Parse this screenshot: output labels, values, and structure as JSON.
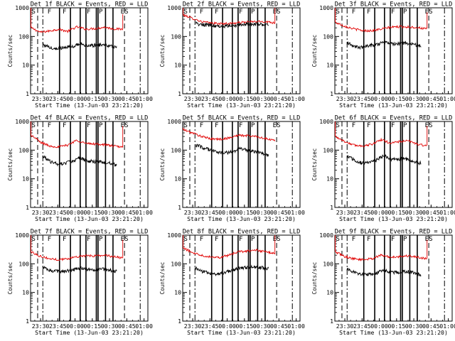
{
  "page": {
    "background": "#ffffff",
    "axis_color": "#000000"
  },
  "chart_data": [
    {
      "type": "line",
      "title": "Det 1f BLACK = Events, RED = LLD",
      "ylabel": "Counts/sec",
      "xlabel": "Start Time (13-Jun-03 23:21:20)",
      "yscale": "log",
      "ylim": [
        1,
        1000
      ],
      "yticks": [
        "1",
        "10",
        "100",
        "1000"
      ],
      "xlim": [
        "23:21:20",
        "01:03:20"
      ],
      "xticks": [
        "23:30",
        "23:45",
        "00:00",
        "00:15",
        "00:30",
        "00:45",
        "01:00"
      ],
      "annotations": [
        {
          "text": "S",
          "time": "23:21:40"
        },
        {
          "text": "F",
          "time": "23:37:50"
        },
        {
          "text": "F",
          "time": "23:51:00"
        },
        {
          "text": "F",
          "time": "00:12:00"
        },
        {
          "text": "P",
          "time": "00:22:30"
        },
        {
          "text": "ES",
          "time": "00:41:30"
        }
      ],
      "vlines_solid": [
        "23:46:30",
        "23:56:00",
        "00:04:30",
        "00:09:30",
        "00:18:30",
        "00:20:00",
        "00:26:30",
        "00:33:00"
      ],
      "vlines_dashed": [
        "23:27:30",
        "00:43:00"
      ],
      "vlines_dashdot": [
        "23:32:00",
        "00:56:40"
      ],
      "series": [
        {
          "name": "LLD",
          "color": "#e00000",
          "start": "23:21:40",
          "end": "00:41:30",
          "level": [
            200,
            140,
            155,
            180,
            150,
            215,
            180,
            190,
            210,
            185,
            180
          ],
          "spike_start": 1000,
          "spike_end": 600
        },
        {
          "name": "Events",
          "color": "#000000",
          "start": "23:32:00",
          "end": "00:36:00",
          "level": [
            55,
            40,
            38,
            42,
            45,
            58,
            48,
            50,
            52,
            48,
            40
          ],
          "spike_start": 60,
          "spike_end": 40
        }
      ]
    },
    {
      "type": "line",
      "title": "Det 2f BLACK = Events, RED = LLD",
      "ylabel": "Counts/sec",
      "xlabel": "Start Time (13-Jun-03 23:21:20)",
      "yscale": "log",
      "ylim": [
        1,
        1000
      ],
      "yticks": [
        "1",
        "10",
        "100",
        "1000"
      ],
      "xlim": [
        "23:21:20",
        "01:03:20"
      ],
      "xticks": [
        "23:30",
        "23:45",
        "00:00",
        "00:15",
        "00:30",
        "00:45",
        "01:00"
      ],
      "annotations": [
        {
          "text": "S",
          "time": "23:21:40"
        },
        {
          "text": "F",
          "time": "23:37:50"
        },
        {
          "text": "F",
          "time": "23:51:00"
        },
        {
          "text": "F",
          "time": "00:12:00"
        },
        {
          "text": "P",
          "time": "00:22:30"
        },
        {
          "text": "ES",
          "time": "00:41:30"
        }
      ],
      "vlines_solid": [
        "23:46:30",
        "23:56:00",
        "00:04:30",
        "00:09:30",
        "00:18:30",
        "00:20:00",
        "00:26:30",
        "00:33:00"
      ],
      "vlines_dashed": [
        "23:27:30",
        "00:43:00"
      ],
      "vlines_dashdot": [
        "23:32:00",
        "00:56:40"
      ],
      "series": [
        {
          "name": "LLD",
          "color": "#e00000",
          "start": "23:21:40",
          "end": "00:41:30",
          "level": [
            560,
            430,
            330,
            295,
            280,
            285,
            300,
            320,
            330,
            330,
            300
          ],
          "spike_start": 1000,
          "spike_end": 1000
        },
        {
          "name": "Events",
          "color": "#000000",
          "start": "23:33:00",
          "end": "00:36:00",
          "level": [
            280,
            260,
            245,
            235,
            230,
            240,
            255,
            265,
            270,
            265,
            245
          ],
          "spike_start": 280,
          "spike_end": 245
        }
      ]
    },
    {
      "type": "line",
      "title": "Det 3f BLACK = Events, RED = LLD",
      "ylabel": "Counts/sec",
      "xlabel": "Start Time (13-Jun-03 23:21:20)",
      "yscale": "log",
      "ylim": [
        1,
        1000
      ],
      "yticks": [
        "1",
        "10",
        "100",
        "1000"
      ],
      "xlim": [
        "23:21:20",
        "01:03:20"
      ],
      "xticks": [
        "23:30",
        "23:45",
        "00:00",
        "00:15",
        "00:30",
        "00:45",
        "01:00"
      ],
      "annotations": [
        {
          "text": "S",
          "time": "23:21:40"
        },
        {
          "text": "F",
          "time": "23:37:50"
        },
        {
          "text": "F",
          "time": "23:51:00"
        },
        {
          "text": "F",
          "time": "00:12:00"
        },
        {
          "text": "P",
          "time": "00:22:30"
        },
        {
          "text": "ES",
          "time": "00:41:30"
        }
      ],
      "vlines_solid": [
        "23:46:30",
        "23:56:00",
        "00:04:30",
        "00:09:30",
        "00:18:30",
        "00:20:00",
        "00:26:30",
        "00:33:00"
      ],
      "vlines_dashed": [
        "23:27:30",
        "00:43:00"
      ],
      "vlines_dashdot": [
        "23:32:00",
        "00:56:40"
      ],
      "series": [
        {
          "name": "LLD",
          "color": "#e00000",
          "start": "23:21:40",
          "end": "00:41:30",
          "level": [
            310,
            230,
            185,
            160,
            160,
            180,
            210,
            220,
            215,
            205,
            180
          ],
          "spike_start": 1000,
          "spike_end": 700
        },
        {
          "name": "Events",
          "color": "#000000",
          "start": "23:32:00",
          "end": "00:36:00",
          "level": [
            60,
            45,
            42,
            48,
            52,
            62,
            55,
            56,
            58,
            52,
            48
          ],
          "spike_start": 65,
          "spike_end": 45
        }
      ]
    },
    {
      "type": "line",
      "title": "Det 4f BLACK = Events, RED = LLD",
      "ylabel": "Counts/sec",
      "xlabel": "Start Time (13-Jun-03 23:21:20)",
      "yscale": "log",
      "ylim": [
        1,
        1000
      ],
      "yticks": [
        "1",
        "10",
        "100",
        "1000"
      ],
      "xlim": [
        "23:21:20",
        "01:03:20"
      ],
      "xticks": [
        "23:30",
        "23:45",
        "00:00",
        "00:15",
        "00:30",
        "00:45",
        "01:00"
      ],
      "annotations": [
        {
          "text": "S",
          "time": "23:21:40"
        },
        {
          "text": "F",
          "time": "23:37:50"
        },
        {
          "text": "F",
          "time": "23:51:00"
        },
        {
          "text": "F",
          "time": "00:12:00"
        },
        {
          "text": "P",
          "time": "00:22:30"
        },
        {
          "text": "ES",
          "time": "00:41:30"
        }
      ],
      "vlines_solid": [
        "23:46:30",
        "23:56:00",
        "00:04:30",
        "00:09:30",
        "00:18:30",
        "00:20:00",
        "00:26:30",
        "00:33:00"
      ],
      "vlines_dashed": [
        "23:27:30",
        "00:43:00"
      ],
      "vlines_dashdot": [
        "23:32:00",
        "00:56:40"
      ],
      "series": [
        {
          "name": "LLD",
          "color": "#e00000",
          "start": "23:21:40",
          "end": "00:41:30",
          "level": [
            330,
            190,
            140,
            130,
            150,
            220,
            170,
            165,
            155,
            140,
            125
          ],
          "spike_start": 1000,
          "spike_end": 700
        },
        {
          "name": "Events",
          "color": "#000000",
          "start": "23:32:00",
          "end": "00:36:00",
          "level": [
            60,
            40,
            32,
            35,
            40,
            55,
            42,
            40,
            38,
            35,
            30
          ],
          "spike_start": 65,
          "spike_end": 30
        }
      ]
    },
    {
      "type": "line",
      "title": "Det 5f BLACK = Events, RED = LLD",
      "ylabel": "Counts/sec",
      "xlabel": "Start Time (13-Jun-03 23:21:20)",
      "yscale": "log",
      "ylim": [
        1,
        1000
      ],
      "yticks": [
        "1",
        "10",
        "100",
        "1000"
      ],
      "xlim": [
        "23:21:20",
        "01:03:20"
      ],
      "xticks": [
        "23:30",
        "23:45",
        "00:00",
        "00:15",
        "00:30",
        "00:45",
        "01:00"
      ],
      "annotations": [
        {
          "text": "S",
          "time": "23:21:40"
        },
        {
          "text": "F",
          "time": "23:37:50"
        },
        {
          "text": "F",
          "time": "23:51:00"
        },
        {
          "text": "F",
          "time": "00:12:00"
        },
        {
          "text": "P",
          "time": "00:22:30"
        },
        {
          "text": "ES",
          "time": "00:41:30"
        }
      ],
      "vlines_solid": [
        "23:46:30",
        "23:56:00",
        "00:04:30",
        "00:09:30",
        "00:18:30",
        "00:20:00",
        "00:26:30",
        "00:33:00"
      ],
      "vlines_dashed": [
        "23:27:30",
        "00:43:00"
      ],
      "vlines_dashdot": [
        "23:32:00",
        "00:56:40"
      ],
      "series": [
        {
          "name": "LLD",
          "color": "#e00000",
          "start": "23:21:40",
          "end": "00:41:30",
          "level": [
            520,
            400,
            300,
            250,
            240,
            265,
            330,
            320,
            300,
            250,
            215
          ],
          "spike_start": 600,
          "spike_end": 215
        },
        {
          "name": "Events",
          "color": "#000000",
          "start": "23:33:00",
          "end": "00:36:00",
          "level": [
            150,
            120,
            100,
            85,
            80,
            90,
            110,
            100,
            90,
            80,
            70
          ],
          "spike_start": 160,
          "spike_end": 70
        }
      ]
    },
    {
      "type": "line",
      "title": "Det 6f BLACK = Events, RED = LLD",
      "ylabel": "Counts/sec",
      "xlabel": "Start Time (13-Jun-03 23:21:20)",
      "yscale": "log",
      "ylim": [
        1,
        1000
      ],
      "yticks": [
        "1",
        "10",
        "100",
        "1000"
      ],
      "xlim": [
        "23:21:20",
        "01:03:20"
      ],
      "xticks": [
        "23:30",
        "23:45",
        "00:00",
        "00:15",
        "00:30",
        "00:45",
        "01:00"
      ],
      "annotations": [
        {
          "text": "S",
          "time": "23:21:40"
        },
        {
          "text": "F",
          "time": "23:37:50"
        },
        {
          "text": "F",
          "time": "23:51:00"
        },
        {
          "text": "F",
          "time": "00:12:00"
        },
        {
          "text": "P",
          "time": "00:22:30"
        },
        {
          "text": "ES",
          "time": "00:41:30"
        }
      ],
      "vlines_solid": [
        "23:46:30",
        "23:56:00",
        "00:04:30",
        "00:09:30",
        "00:18:30",
        "00:20:00",
        "00:26:30",
        "00:33:00"
      ],
      "vlines_dashed": [
        "23:27:30",
        "00:43:00"
      ],
      "vlines_dashdot": [
        "23:32:00",
        "00:56:40"
      ],
      "series": [
        {
          "name": "LLD",
          "color": "#e00000",
          "start": "23:21:40",
          "end": "00:41:30",
          "level": [
            300,
            200,
            150,
            140,
            160,
            230,
            175,
            200,
            210,
            160,
            140
          ],
          "spike_start": 1000,
          "spike_end": 700
        },
        {
          "name": "Events",
          "color": "#000000",
          "start": "23:32:00",
          "end": "00:36:00",
          "level": [
            60,
            45,
            35,
            38,
            45,
            65,
            45,
            50,
            50,
            40,
            35
          ],
          "spike_start": 65,
          "spike_end": 35
        }
      ]
    },
    {
      "type": "line",
      "title": "Det 7f BLACK = Events, RED = LLD",
      "ylabel": "Counts/sec",
      "xlabel": "Start Time (13-Jun-03 23:21:20)",
      "yscale": "log",
      "ylim": [
        1,
        1000
      ],
      "yticks": [
        "1",
        "10",
        "100",
        "1000"
      ],
      "xlim": [
        "23:21:20",
        "01:03:20"
      ],
      "xticks": [
        "23:30",
        "23:45",
        "00:00",
        "00:15",
        "00:30",
        "00:45",
        "01:00"
      ],
      "annotations": [
        {
          "text": "S",
          "time": "23:21:40"
        },
        {
          "text": "F",
          "time": "23:37:50"
        },
        {
          "text": "F",
          "time": "23:51:00"
        },
        {
          "text": "F",
          "time": "00:12:00"
        },
        {
          "text": "P",
          "time": "00:22:30"
        },
        {
          "text": "ES",
          "time": "00:41:30"
        }
      ],
      "vlines_solid": [
        "23:46:30",
        "23:56:00",
        "00:04:30",
        "00:09:30",
        "00:18:30",
        "00:20:00",
        "00:26:30",
        "00:33:00"
      ],
      "vlines_dashed": [
        "23:27:30",
        "00:43:00"
      ],
      "vlines_dashdot": [
        "23:32:00",
        "00:56:40"
      ],
      "series": [
        {
          "name": "LLD",
          "color": "#e00000",
          "start": "23:21:40",
          "end": "00:41:30",
          "level": [
            260,
            185,
            150,
            140,
            150,
            180,
            190,
            190,
            200,
            180,
            160
          ],
          "spike_start": 1000,
          "spike_end": 700
        },
        {
          "name": "Events",
          "color": "#000000",
          "start": "23:32:00",
          "end": "00:36:00",
          "level": [
            75,
            60,
            55,
            55,
            60,
            70,
            65,
            62,
            65,
            60,
            55
          ],
          "spike_start": 80,
          "spike_end": 55
        }
      ]
    },
    {
      "type": "line",
      "title": "Det 8f BLACK = Events, RED = LLD",
      "ylabel": "Counts/sec",
      "xlabel": "Start Time (13-Jun-03 23:21:20)",
      "yscale": "log",
      "ylim": [
        1,
        1000
      ],
      "yticks": [
        "1",
        "10",
        "100",
        "1000"
      ],
      "xlim": [
        "23:21:20",
        "01:03:20"
      ],
      "xticks": [
        "23:30",
        "23:45",
        "00:00",
        "00:15",
        "00:30",
        "00:45",
        "01:00"
      ],
      "annotations": [
        {
          "text": "S",
          "time": "23:21:40"
        },
        {
          "text": "F",
          "time": "23:37:50"
        },
        {
          "text": "F",
          "time": "23:51:00"
        },
        {
          "text": "F",
          "time": "00:12:00"
        },
        {
          "text": "P",
          "time": "00:22:30"
        },
        {
          "text": "ES",
          "time": "00:41:30"
        }
      ],
      "vlines_solid": [
        "23:46:30",
        "23:56:00",
        "00:04:30",
        "00:09:30",
        "00:18:30",
        "00:20:00",
        "00:26:30",
        "00:33:00"
      ],
      "vlines_dashed": [
        "23:27:30",
        "00:43:00"
      ],
      "vlines_dashdot": [
        "23:32:00",
        "00:56:40"
      ],
      "series": [
        {
          "name": "LLD",
          "color": "#e00000",
          "start": "23:21:40",
          "end": "00:41:30",
          "level": [
            350,
            250,
            200,
            175,
            170,
            200,
            260,
            280,
            300,
            260,
            230
          ],
          "spike_start": 1000,
          "spike_end": 1000
        },
        {
          "name": "Events",
          "color": "#000000",
          "start": "23:32:00",
          "end": "00:36:00",
          "level": [
            70,
            55,
            45,
            42,
            48,
            60,
            70,
            75,
            80,
            75,
            70
          ],
          "spike_start": 75,
          "spike_end": 70
        }
      ]
    },
    {
      "type": "line",
      "title": "Det 9f BLACK = Events, RED = LLD",
      "ylabel": "Counts/sec",
      "xlabel": "Start Time (13-Jun-03 23:21:20)",
      "yscale": "log",
      "ylim": [
        1,
        1000
      ],
      "yticks": [
        "1",
        "10",
        "100",
        "1000"
      ],
      "xlim": [
        "23:21:20",
        "01:03:20"
      ],
      "xticks": [
        "23:30",
        "23:45",
        "00:00",
        "00:15",
        "00:30",
        "00:45",
        "01:00"
      ],
      "annotations": [
        {
          "text": "S",
          "time": "23:21:40"
        },
        {
          "text": "F",
          "time": "23:37:50"
        },
        {
          "text": "F",
          "time": "23:51:00"
        },
        {
          "text": "F",
          "time": "00:12:00"
        },
        {
          "text": "P",
          "time": "00:22:30"
        },
        {
          "text": "ES",
          "time": "00:41:30"
        }
      ],
      "vlines_solid": [
        "23:46:30",
        "23:56:00",
        "00:04:30",
        "00:09:30",
        "00:18:30",
        "00:20:00",
        "00:26:30",
        "00:33:00"
      ],
      "vlines_dashed": [
        "23:27:30",
        "00:43:00"
      ],
      "vlines_dashdot": [
        "23:32:00",
        "00:56:40"
      ],
      "series": [
        {
          "name": "LLD",
          "color": "#e00000",
          "start": "23:21:40",
          "end": "00:41:30",
          "level": [
            260,
            180,
            150,
            140,
            150,
            200,
            170,
            180,
            190,
            170,
            150
          ],
          "spike_start": 1000,
          "spike_end": 700
        },
        {
          "name": "Events",
          "color": "#000000",
          "start": "23:32:00",
          "end": "00:36:00",
          "level": [
            65,
            50,
            42,
            42,
            48,
            60,
            50,
            52,
            55,
            50,
            40
          ],
          "spike_start": 70,
          "spike_end": 40
        }
      ]
    }
  ]
}
